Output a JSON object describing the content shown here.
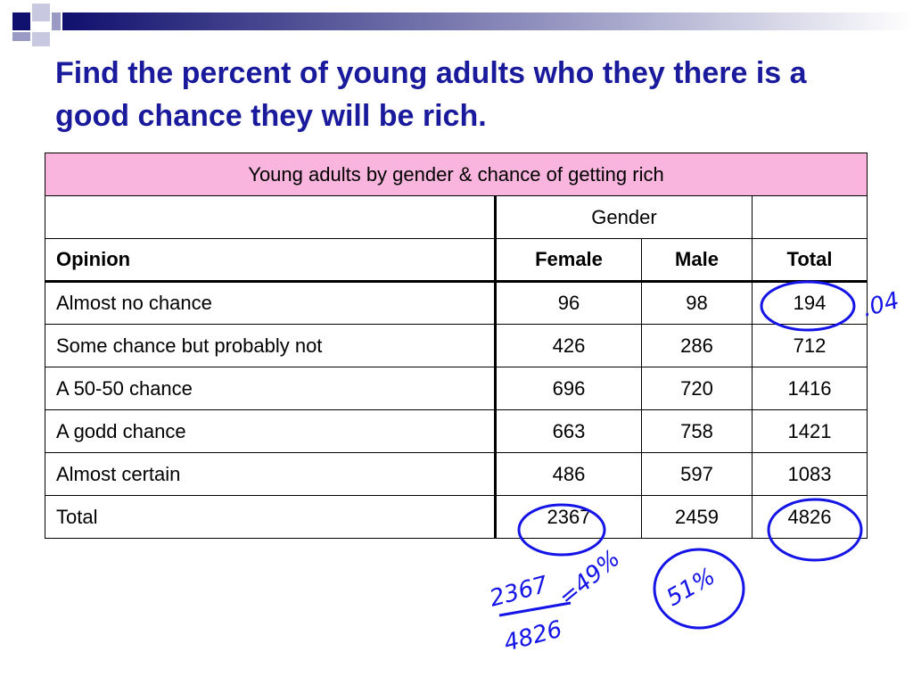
{
  "title": "Find the percent of young adults who they there is a good chance they will be rich.",
  "table": {
    "caption": "Young adults by gender & chance of getting rich",
    "group_header": "Gender",
    "columns": [
      "Opinion",
      "Female",
      "Male",
      "Total"
    ],
    "rows": [
      [
        "Almost no chance",
        96,
        98,
        194
      ],
      [
        "Some chance but probably not",
        426,
        286,
        712
      ],
      [
        "A 50-50 chance",
        696,
        720,
        1416
      ],
      [
        "A godd chance",
        663,
        758,
        1421
      ],
      [
        "Almost certain",
        486,
        597,
        1083
      ],
      [
        "Total",
        2367,
        2459,
        4826
      ]
    ]
  },
  "annotations": [
    ".04",
    "2367",
    "4826",
    "=49%",
    "51%"
  ]
}
